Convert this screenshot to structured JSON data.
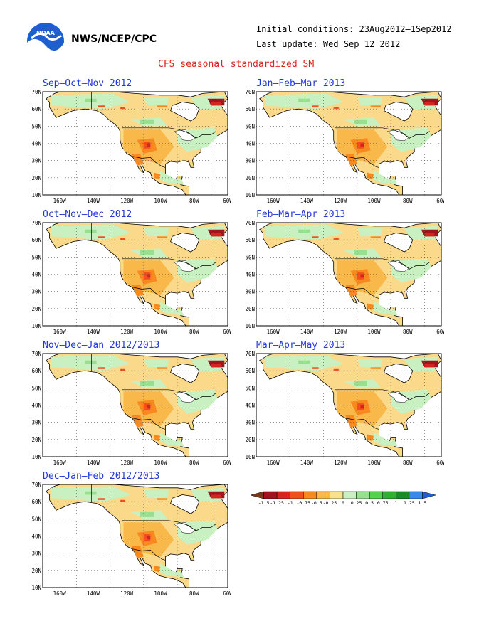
{
  "header": {
    "org": "NWS/NCEP/CPC",
    "initial": "Initial conditions: 23Aug2012–1Sep2012",
    "updated": "Last update: Wed Sep 12 2012",
    "title": "CFS seasonal standardized SM"
  },
  "logo": {
    "text": "NOAA",
    "color": "#1e5fd0"
  },
  "map": {
    "lat_labels": [
      "70N",
      "60N",
      "50N",
      "40N",
      "30N",
      "20N",
      "10N"
    ],
    "lon_labels": [
      "160W",
      "140W",
      "120W",
      "100W",
      "80W",
      "60W"
    ],
    "ocean_color": "#ffffff",
    "land_base_color": "#fbd98a"
  },
  "panels": [
    {
      "title": "Sep–Oct–Nov 2012"
    },
    {
      "title": "Jan–Feb–Mar 2013"
    },
    {
      "title": "Oct–Nov–Dec 2012"
    },
    {
      "title": "Feb–Mar–Apr 2013"
    },
    {
      "title": "Nov–Dec–Jan 2012/2013"
    },
    {
      "title": "Mar–Apr–May 2013"
    },
    {
      "title": "Dec–Jan–Feb 2012/2013"
    }
  ],
  "legend": {
    "labels": [
      "-1.5",
      "-1.25",
      "-1",
      "-0.75",
      "-0.5",
      "-0.25",
      "0",
      "0.25",
      "0.5",
      "0.75",
      "1",
      "1.25",
      "1.5"
    ],
    "colors": [
      "#7a3a1a",
      "#a0141e",
      "#d8241e",
      "#f0501e",
      "#f8891e",
      "#f8b84a",
      "#f8e08e",
      "#c8f0c0",
      "#98e090",
      "#58d050",
      "#30b030",
      "#1a8a2a",
      "#3a88ee",
      "#1e5fd0"
    ]
  }
}
